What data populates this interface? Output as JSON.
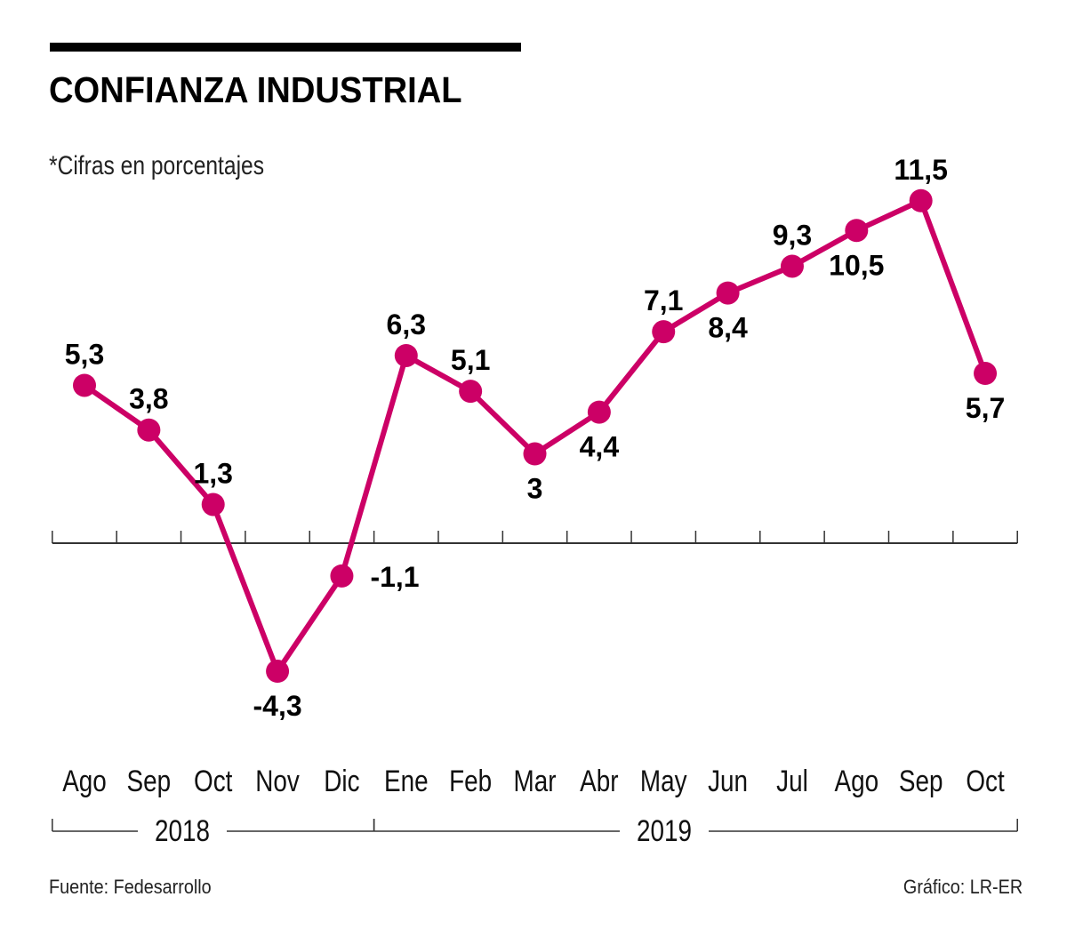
{
  "header": {
    "title": "CONFIANZA INDUSTRIAL",
    "subtitle": "*Cifras en porcentajes"
  },
  "footer": {
    "source": "Fuente: Fedesarrollo",
    "credit": "Gráfico: LR-ER"
  },
  "colors": {
    "series": "#cc0066",
    "axis": "#333333",
    "text": "#000000"
  },
  "chart_data": {
    "type": "line",
    "title": "CONFIANZA INDUSTRIAL",
    "subtitle": "*Cifras en porcentajes",
    "xlabel": "",
    "ylabel": "",
    "categories": [
      "Ago",
      "Sep",
      "Oct",
      "Nov",
      "Dic",
      "Ene",
      "Feb",
      "Mar",
      "Abr",
      "May",
      "Jun",
      "Jul",
      "Ago",
      "Sep",
      "Oct"
    ],
    "years": [
      {
        "label": "2018",
        "from": 0,
        "to": 4
      },
      {
        "label": "2019",
        "from": 5,
        "to": 14
      }
    ],
    "series": [
      {
        "name": "Confianza industrial",
        "values": [
          5.3,
          3.8,
          1.3,
          -4.3,
          -1.1,
          6.3,
          5.1,
          3,
          4.4,
          7.1,
          8.4,
          9.3,
          10.5,
          11.5,
          5.7
        ],
        "labels": [
          "5,3",
          "3,8",
          "1,3",
          "-4,3",
          "-1,1",
          "6,3",
          "5,1",
          "3",
          "4,4",
          "7,1",
          "8,4",
          "9,3",
          "10,5",
          "11,5",
          "5,7"
        ],
        "label_positions": [
          "above",
          "above",
          "above",
          "below",
          "right",
          "above",
          "above",
          "below",
          "below",
          "above",
          "below",
          "above",
          "below",
          "above",
          "below"
        ]
      }
    ],
    "ylim": [
      -4.3,
      11.5
    ],
    "grid": false,
    "legend": "none"
  }
}
